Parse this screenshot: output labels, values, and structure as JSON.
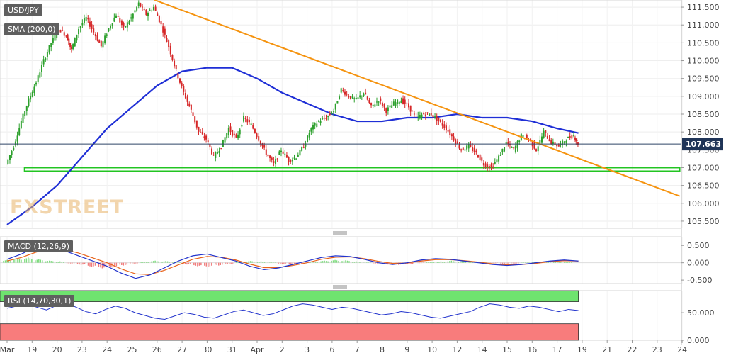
{
  "main_panel": {
    "symbol_label": "USD/JPY",
    "sma_label": "SMA (200,0)",
    "watermark": "FXSTREET",
    "current_price_label": "107.663",
    "y_ticks": [
      "111.500",
      "111.000",
      "110.500",
      "110.000",
      "109.500",
      "109.000",
      "108.500",
      "108.000",
      "107.500",
      "107.000",
      "106.500",
      "106.000",
      "105.500"
    ]
  },
  "macd_panel": {
    "label": "MACD (12,26,9)",
    "y_ticks": [
      "0.500",
      "0.000",
      "-0.500"
    ]
  },
  "rsi_panel": {
    "label": "RSI (14,70,30,1)",
    "y_ticks": [
      "50.000",
      "0.000"
    ]
  },
  "x_axis": {
    "tick_labels": [
      "Mar",
      "19",
      "20",
      "23",
      "24",
      "25",
      "26",
      "27",
      "30",
      "31",
      "Apr",
      "2",
      "3",
      "6",
      "7",
      "8",
      "9",
      "10",
      "12",
      "14",
      "15",
      "16",
      "17",
      "19",
      "21",
      "22",
      "23",
      "24"
    ]
  },
  "colors": {
    "sma": "#1f2fd6",
    "trendline": "#f5930f",
    "support_zone": "#22c422",
    "candle_up": "#2ca02c",
    "candle_down": "#d62728",
    "macd_signal": "#e8631a",
    "rsi_line": "#2233cc",
    "rsi_overbought": "#6fe36f",
    "rsi_oversold": "#f87c7c"
  },
  "chart_data": [
    {
      "type": "candlestick",
      "title": "USD/JPY",
      "ylim": [
        105.3,
        111.7
      ],
      "x_labels": [
        "Mar",
        "19",
        "20",
        "23",
        "24",
        "25",
        "26",
        "27",
        "30",
        "31",
        "Apr",
        "2",
        "3",
        "6",
        "7",
        "8",
        "9",
        "10",
        "12",
        "14",
        "15",
        "16",
        "17",
        "19"
      ],
      "close_path": [
        [
          0,
          107.1
        ],
        [
          0.3,
          107.6
        ],
        [
          0.6,
          108.3
        ],
        [
          0.9,
          108.9
        ],
        [
          1.2,
          109.4
        ],
        [
          1.5,
          110.0
        ],
        [
          1.8,
          110.5
        ],
        [
          2.1,
          110.9
        ],
        [
          2.4,
          110.7
        ],
        [
          2.6,
          110.3
        ],
        [
          2.9,
          110.9
        ],
        [
          3.2,
          111.2
        ],
        [
          3.5,
          110.8
        ],
        [
          3.8,
          110.4
        ],
        [
          4.1,
          110.9
        ],
        [
          4.4,
          111.3
        ],
        [
          4.7,
          110.9
        ],
        [
          5.0,
          111.2
        ],
        [
          5.3,
          111.6
        ],
        [
          5.6,
          111.3
        ],
        [
          5.9,
          111.5
        ],
        [
          6.2,
          111.0
        ],
        [
          6.5,
          110.4
        ],
        [
          6.8,
          109.7
        ],
        [
          7.1,
          109.1
        ],
        [
          7.4,
          108.6
        ],
        [
          7.7,
          108.0
        ],
        [
          8.0,
          107.8
        ],
        [
          8.3,
          107.3
        ],
        [
          8.6,
          107.6
        ],
        [
          8.9,
          108.1
        ],
        [
          9.2,
          107.8
        ],
        [
          9.5,
          108.4
        ],
        [
          9.8,
          108.2
        ],
        [
          10.1,
          107.8
        ],
        [
          10.4,
          107.4
        ],
        [
          10.7,
          107.1
        ],
        [
          11.0,
          107.5
        ],
        [
          11.3,
          107.2
        ],
        [
          11.6,
          107.3
        ],
        [
          11.9,
          107.6
        ],
        [
          12.2,
          108.1
        ],
        [
          12.5,
          108.3
        ],
        [
          12.8,
          108.4
        ],
        [
          13.1,
          108.6
        ],
        [
          13.4,
          109.2
        ],
        [
          13.7,
          109.0
        ],
        [
          14.0,
          108.9
        ],
        [
          14.3,
          109.1
        ],
        [
          14.6,
          108.7
        ],
        [
          14.9,
          108.9
        ],
        [
          15.2,
          108.6
        ],
        [
          15.5,
          108.8
        ],
        [
          15.8,
          108.9
        ],
        [
          16.1,
          108.7
        ],
        [
          16.4,
          108.4
        ],
        [
          16.7,
          108.5
        ],
        [
          17.0,
          108.5
        ],
        [
          17.3,
          108.3
        ],
        [
          17.6,
          108.1
        ],
        [
          17.9,
          107.8
        ],
        [
          18.2,
          107.5
        ],
        [
          18.5,
          107.6
        ],
        [
          18.8,
          107.4
        ],
        [
          19.1,
          107.1
        ],
        [
          19.4,
          107.0
        ],
        [
          19.7,
          107.3
        ],
        [
          20.0,
          107.7
        ],
        [
          20.3,
          107.5
        ],
        [
          20.6,
          107.9
        ],
        [
          20.9,
          107.8
        ],
        [
          21.2,
          107.5
        ],
        [
          21.5,
          108.0
        ],
        [
          21.8,
          107.7
        ],
        [
          22.1,
          107.6
        ],
        [
          22.4,
          107.8
        ],
        [
          22.7,
          107.9
        ],
        [
          22.85,
          107.663
        ]
      ]
    },
    {
      "type": "line",
      "name": "SMA (200,0)",
      "x": [
        0,
        1,
        2,
        3,
        4,
        5,
        6,
        7,
        8,
        9,
        10,
        11,
        12,
        13,
        14,
        15,
        16,
        17,
        18,
        19,
        20,
        21,
        22,
        22.85
      ],
      "values": [
        105.4,
        105.9,
        106.5,
        107.3,
        108.1,
        108.7,
        109.3,
        109.7,
        109.8,
        109.8,
        109.5,
        109.1,
        108.8,
        108.5,
        108.3,
        108.3,
        108.4,
        108.4,
        108.5,
        108.4,
        108.4,
        108.3,
        108.1,
        107.97
      ]
    },
    {
      "type": "line",
      "name": "trendline",
      "x": [
        5.9,
        26.9
      ],
      "values": [
        111.7,
        106.2
      ]
    },
    {
      "type": "area",
      "name": "support zone",
      "x": [
        0.7,
        26.9
      ],
      "values": [
        106.9,
        107.0
      ]
    },
    {
      "type": "bar",
      "title": "MACD (12,26,9)",
      "ylim": [
        -0.6,
        0.75
      ],
      "histogram": [
        0.08,
        0.12,
        0.15,
        0.1,
        0.06,
        0.04,
        -0.02,
        -0.06,
        -0.12,
        -0.16,
        -0.14,
        -0.08,
        -0.02,
        0.03,
        0.06,
        0.05,
        0.02,
        -0.05,
        -0.1,
        -0.12,
        -0.08,
        -0.03,
        0.02,
        0.05,
        0.04,
        0.01,
        -0.03,
        -0.05,
        -0.02,
        0.02,
        0.06,
        0.08,
        0.07,
        0.04,
        0.01,
        -0.02,
        -0.05,
        -0.06,
        -0.04,
        -0.01,
        0.02,
        0.04,
        0.06,
        0.05,
        0.03,
        0.01,
        -0.01,
        -0.03,
        -0.02,
        0.01,
        0.03,
        0.05,
        0.04,
        0.02,
        0.0
      ],
      "macd": [
        0.1,
        0.25,
        0.45,
        0.55,
        0.35,
        0.2,
        0.05,
        -0.1,
        -0.3,
        -0.45,
        -0.35,
        -0.15,
        0.05,
        0.2,
        0.25,
        0.15,
        0.05,
        -0.1,
        -0.2,
        -0.15,
        -0.05,
        0.05,
        0.15,
        0.2,
        0.18,
        0.1,
        0.0,
        -0.05,
        0.0,
        0.08,
        0.12,
        0.1,
        0.05,
        0.0,
        -0.05,
        -0.08,
        -0.05,
        0.0,
        0.05,
        0.08,
        0.05
      ],
      "signal": [
        0.05,
        0.15,
        0.3,
        0.42,
        0.38,
        0.28,
        0.14,
        0.0,
        -0.18,
        -0.32,
        -0.34,
        -0.22,
        -0.06,
        0.1,
        0.18,
        0.16,
        0.08,
        -0.04,
        -0.14,
        -0.14,
        -0.08,
        0.0,
        0.1,
        0.16,
        0.17,
        0.12,
        0.04,
        -0.02,
        -0.01,
        0.05,
        0.09,
        0.09,
        0.06,
        0.02,
        -0.03,
        -0.06,
        -0.05,
        -0.02,
        0.03,
        0.06,
        0.05
      ]
    },
    {
      "type": "line",
      "title": "RSI (14,70,30,1)",
      "ylim": [
        0,
        90
      ],
      "overbought": 70,
      "oversold": 30,
      "values": [
        58,
        62,
        66,
        60,
        55,
        63,
        68,
        60,
        52,
        48,
        56,
        62,
        58,
        50,
        45,
        40,
        38,
        44,
        50,
        47,
        42,
        40,
        46,
        52,
        55,
        50,
        45,
        48,
        55,
        62,
        66,
        64,
        60,
        56,
        60,
        58,
        54,
        50,
        46,
        48,
        52,
        50,
        46,
        42,
        40,
        44,
        48,
        52,
        60,
        66,
        64,
        60,
        58,
        62,
        60,
        56,
        52,
        56,
        54
      ]
    }
  ]
}
